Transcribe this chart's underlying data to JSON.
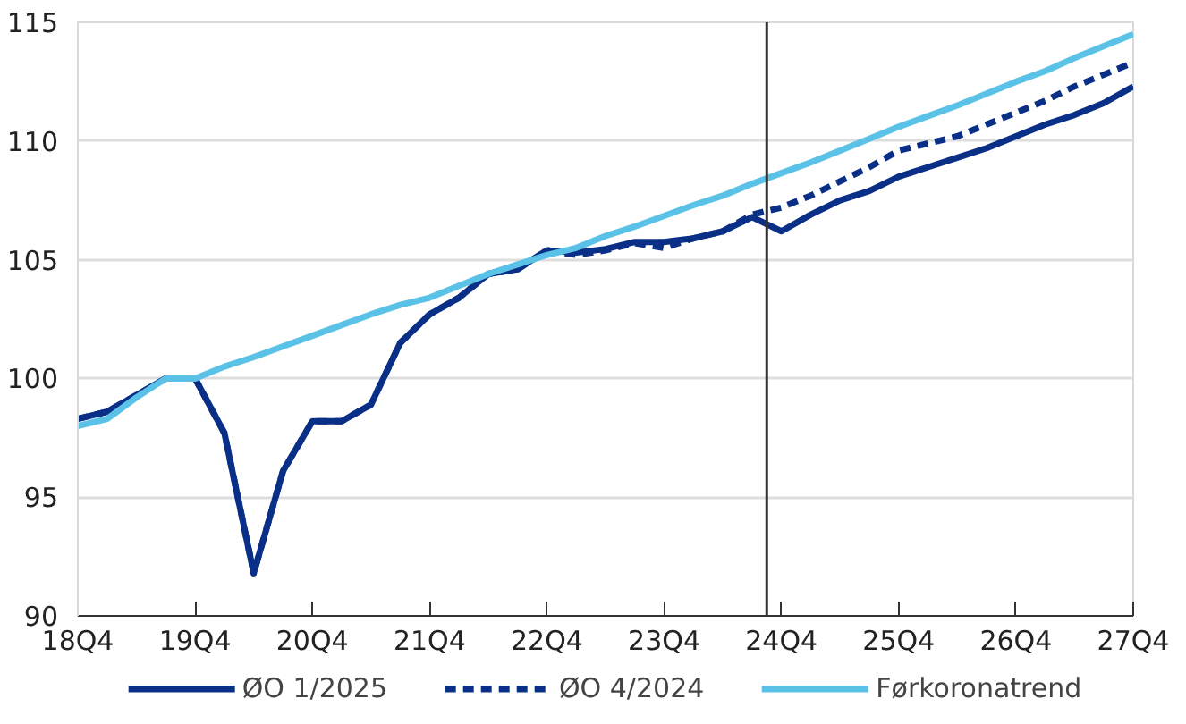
{
  "chart_data": {
    "type": "line",
    "categories": [
      "18Q4",
      null,
      null,
      null,
      "19Q4",
      null,
      null,
      null,
      "20Q4",
      null,
      null,
      null,
      "21Q4",
      null,
      null,
      null,
      "22Q4",
      null,
      null,
      null,
      "23Q4",
      null,
      null,
      null,
      "24Q4",
      null,
      null,
      null,
      "25Q4",
      null,
      null,
      null,
      "26Q4",
      null,
      null,
      null,
      "27Q4"
    ],
    "series": [
      {
        "name": "ØO 1/2025",
        "color": "#0a2f87",
        "line_style": "solid",
        "values": [
          98.3,
          98.6,
          99.3,
          100.0,
          100.0,
          97.7,
          91.8,
          96.1,
          98.2,
          98.2,
          98.9,
          101.5,
          102.7,
          103.4,
          104.4,
          104.6,
          105.4,
          105.3,
          105.45,
          105.75,
          105.75,
          105.9,
          106.2,
          106.8,
          106.2,
          106.9,
          107.5,
          107.9,
          108.5,
          108.9,
          109.3,
          109.7,
          110.2,
          110.7,
          111.1,
          111.6,
          112.3
        ]
      },
      {
        "name": "ØO 4/2024",
        "color": "#0a2f87",
        "line_style": "dashed",
        "values": [
          98.3,
          98.6,
          99.3,
          100.0,
          100.0,
          97.7,
          91.8,
          96.1,
          98.2,
          98.2,
          98.9,
          101.5,
          102.7,
          103.4,
          104.4,
          104.6,
          105.4,
          105.2,
          105.4,
          105.7,
          105.5,
          105.9,
          106.2,
          106.9,
          107.2,
          107.7,
          108.3,
          108.9,
          109.6,
          109.9,
          110.2,
          110.7,
          111.2,
          111.7,
          112.3,
          112.8,
          113.3
        ]
      },
      {
        "name": "Førkoronatrend",
        "color": "#5bc2e7",
        "line_style": "solid",
        "values": [
          98.0,
          98.3,
          99.2,
          100.0,
          100.0,
          100.5,
          100.9,
          101.35,
          101.8,
          102.25,
          102.7,
          103.1,
          103.4,
          103.9,
          104.4,
          104.8,
          105.2,
          105.5,
          106.0,
          106.4,
          106.85,
          107.3,
          107.7,
          108.2,
          108.65,
          109.1,
          109.6,
          110.1,
          110.6,
          111.05,
          111.5,
          112.0,
          112.5,
          112.95,
          113.5,
          114.0,
          114.5
        ]
      }
    ],
    "ylim": [
      90,
      115
    ],
    "yticks": [
      90,
      95,
      100,
      105,
      110,
      115
    ],
    "ref_lines": [
      {
        "axis": "x",
        "value": "24Q4",
        "color": "#333333"
      }
    ],
    "grid": "y",
    "legend": "bottom",
    "marker": "none"
  }
}
